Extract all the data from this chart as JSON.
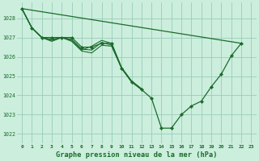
{
  "title": "Graphe pression niveau de la mer (hPa)",
  "background_color": "#cceedd",
  "grid_color": "#99ccbb",
  "line_color": "#1a6b2a",
  "xlim": [
    -0.5,
    23.5
  ],
  "ylim": [
    1021.5,
    1028.8
  ],
  "yticks": [
    1022,
    1023,
    1024,
    1025,
    1026,
    1027,
    1028
  ],
  "xticks": [
    0,
    1,
    2,
    3,
    4,
    5,
    6,
    7,
    8,
    9,
    10,
    11,
    12,
    13,
    14,
    15,
    16,
    17,
    18,
    19,
    20,
    21,
    22,
    23
  ],
  "line_flat": {
    "x": [
      0,
      22
    ],
    "y": [
      1028.5,
      1026.7
    ]
  },
  "line_main": {
    "x": [
      0,
      1,
      2,
      3,
      4,
      5,
      6,
      7,
      8,
      9,
      10,
      11,
      12,
      13,
      14,
      15,
      16,
      17,
      18,
      19,
      20,
      21,
      22
    ],
    "y": [
      1028.5,
      1027.5,
      1027.0,
      1027.0,
      1027.0,
      1027.0,
      1026.5,
      1026.5,
      1026.7,
      1026.7,
      1025.4,
      1024.7,
      1024.3,
      1023.85,
      1022.3,
      1022.3,
      1023.0,
      1023.45,
      1023.7,
      1024.45,
      1025.1,
      1026.05,
      1026.7
    ]
  },
  "line_a": {
    "x": [
      0,
      1,
      2,
      3,
      4,
      5,
      6,
      7,
      8,
      9,
      10,
      11,
      12
    ],
    "y": [
      1028.5,
      1027.5,
      1027.0,
      1026.8,
      1027.0,
      1026.8,
      1026.3,
      1026.2,
      1026.6,
      1026.55,
      1025.4,
      1024.7,
      1024.3
    ]
  },
  "line_b": {
    "x": [
      0,
      1,
      2,
      3,
      4,
      5,
      6,
      7,
      8,
      9,
      10,
      11,
      12
    ],
    "y": [
      1028.5,
      1027.5,
      1027.0,
      1026.85,
      1027.0,
      1026.85,
      1026.35,
      1026.55,
      1026.85,
      1026.7,
      1025.45,
      1024.75,
      1024.35
    ]
  },
  "line_c": {
    "x": [
      0,
      1,
      2,
      3,
      4,
      5,
      6,
      7,
      8,
      9,
      10,
      11,
      12
    ],
    "y": [
      1028.5,
      1027.5,
      1027.0,
      1026.9,
      1027.0,
      1026.9,
      1026.4,
      1026.35,
      1026.75,
      1026.6,
      1025.42,
      1024.72,
      1024.32
    ]
  }
}
